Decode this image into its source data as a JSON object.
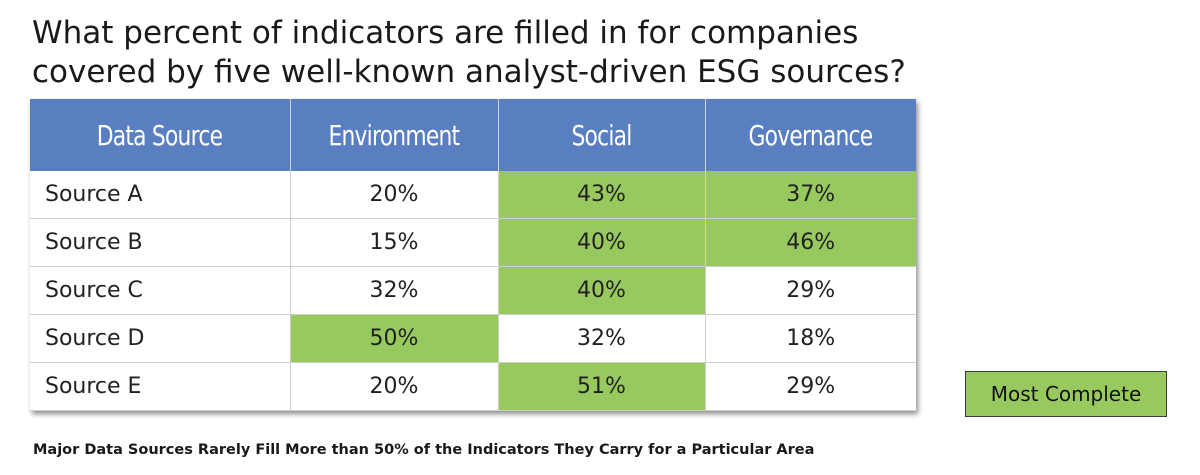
{
  "title": {
    "line1": "What percent of indicators are filled in for companies",
    "line2": "covered by five well-known analyst-driven ESG sources?"
  },
  "legend_label": "Most Complete",
  "footnote": "Major Data Sources Rarely Fill More than 50% of the Indicators They Carry for a Particular Area",
  "colors": {
    "header_bg": "#5a7fc1",
    "highlight": "#98c95e"
  },
  "chart_data": {
    "type": "table",
    "title": "What percent of indicators are filled in for companies covered by five well-known analyst-driven ESG sources?",
    "columns": [
      "Data Source",
      "Environment",
      "Social",
      "Governance"
    ],
    "rows": [
      {
        "source": "Source A",
        "values": [
          "20%",
          "43%",
          "37%"
        ],
        "highlight": [
          false,
          true,
          true
        ]
      },
      {
        "source": "Source B",
        "values": [
          "15%",
          "40%",
          "46%"
        ],
        "highlight": [
          false,
          true,
          true
        ]
      },
      {
        "source": "Source C",
        "values": [
          "32%",
          "40%",
          "29%"
        ],
        "highlight": [
          false,
          true,
          false
        ]
      },
      {
        "source": "Source D",
        "values": [
          "50%",
          "32%",
          "18%"
        ],
        "highlight": [
          true,
          false,
          false
        ]
      },
      {
        "source": "Source E",
        "values": [
          "20%",
          "51%",
          "29%"
        ],
        "highlight": [
          false,
          true,
          false
        ]
      }
    ]
  }
}
